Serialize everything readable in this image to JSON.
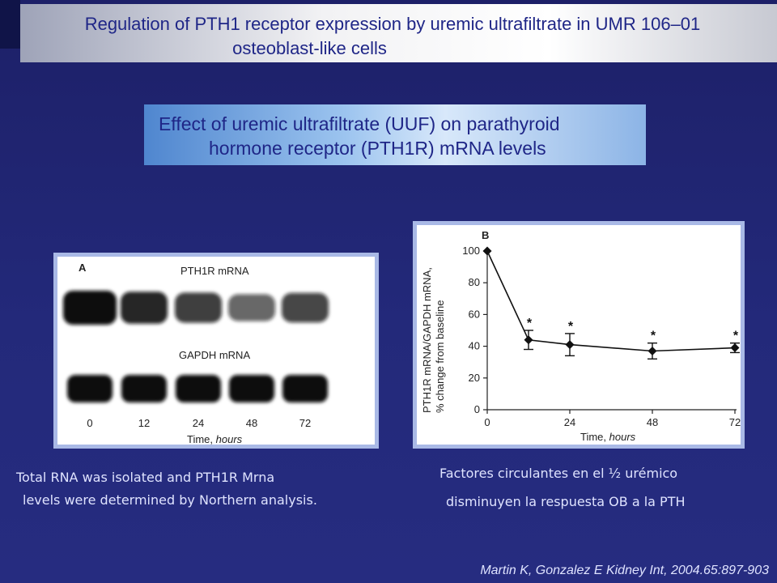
{
  "slide": {
    "title_line1": "Regulation of PTH1 receptor expression by uremic ultrafiltrate in UMR 106–01",
    "title_line2": "osteoblast-like cells",
    "subtitle_line1": "Effect of uremic ultrafiltrate (UUF) on parathyroid",
    "subtitle_line2": "hormone receptor (PTH1R) mRNA levels",
    "caption_left_line1": "Total RNA was isolated and PTH1R Mrna",
    "caption_left_line2": "levels were determined by Northern analysis.",
    "caption_right_line1": "Factores circulantes en el ½ urémico",
    "caption_right_line2": "disminuyen la respuesta OB a la PTH",
    "citation": "Martin K, Gonzalez E Kidney Int, 2004.65:897-903"
  },
  "blot": {
    "panel_label": "A",
    "row1_label": "PTH1R mRNA",
    "row2_label": "GAPDH mRNA",
    "lanes": [
      "0",
      "12",
      "24",
      "48",
      "72"
    ],
    "xlabel_prefix": "Time, ",
    "xlabel_unit": "hours",
    "pth1r_band_intensity": [
      1.0,
      0.85,
      0.7,
      0.45,
      0.65
    ],
    "gapdh_band_intensity": [
      1.0,
      1.0,
      1.0,
      1.0,
      1.0
    ]
  },
  "chart_data": {
    "type": "line",
    "panel_label": "B",
    "x": [
      0,
      12,
      24,
      48,
      72
    ],
    "series": [
      {
        "values": [
          100,
          44,
          41,
          37,
          39
        ],
        "errors": [
          0,
          6,
          7,
          5,
          3
        ],
        "significant": [
          false,
          true,
          true,
          true,
          true
        ]
      }
    ],
    "significance_marker": "*",
    "xticks": [
      "0",
      "24",
      "48",
      "72"
    ],
    "yticks": [
      "0",
      "20",
      "40",
      "60",
      "80",
      "100"
    ],
    "xlim": [
      0,
      72
    ],
    "ylim": [
      0,
      100
    ],
    "xlabel_prefix": "Time, ",
    "xlabel_unit": "hours",
    "ylabel_line1": "PTH1R mRNA/GAPDH mRNA,",
    "ylabel_line2": "% change from baseline",
    "grid": false
  }
}
